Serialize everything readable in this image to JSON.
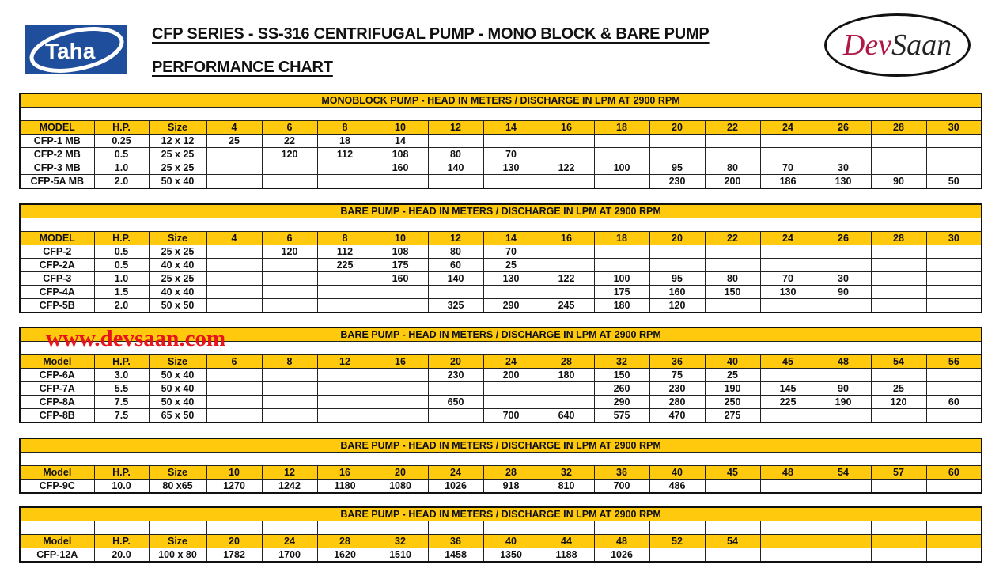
{
  "header": {
    "title_line1": "CFP SERIES - SS-316 CENTRIFUGAL PUMP - MONO BLOCK & BARE PUMP",
    "title_line2": "PERFORMANCE CHART",
    "left_logo_text": "Taha",
    "right_logo_text_1": "Dev",
    "right_logo_text_2": "Saan"
  },
  "watermark": "www.devsaan.com",
  "colors": {
    "header_yellow": "#ffc90e",
    "watermark_red": "#e8141b",
    "taha_blue": "#1f4f9c"
  },
  "tables": [
    {
      "title": "MONOBLOCK PUMP - HEAD IN METERS / DISCHARGE IN LPM AT 2900 RPM",
      "columns": [
        "MODEL",
        "H.P.",
        "Size",
        "4",
        "6",
        "8",
        "10",
        "12",
        "14",
        "16",
        "18",
        "20",
        "22",
        "24",
        "26",
        "28",
        "30"
      ],
      "rows": [
        [
          "CFP-1 MB",
          "0.25",
          "12 x 12",
          "25",
          "22",
          "18",
          "14",
          "",
          "",
          "",
          "",
          "",
          "",
          "",
          "",
          "",
          ""
        ],
        [
          "CFP-2 MB",
          "0.5",
          "25 x 25",
          "",
          "120",
          "112",
          "108",
          "80",
          "70",
          "",
          "",
          "",
          "",
          "",
          "",
          "",
          ""
        ],
        [
          "CFP-3 MB",
          "1.0",
          "25 x 25",
          "",
          "",
          "",
          "160",
          "140",
          "130",
          "122",
          "100",
          "95",
          "80",
          "70",
          "30",
          "",
          ""
        ],
        [
          "CFP-5A MB",
          "2.0",
          "50 x 40",
          "",
          "",
          "",
          "",
          "",
          "",
          "",
          "",
          "230",
          "200",
          "186",
          "130",
          "90",
          "50"
        ]
      ]
    },
    {
      "title": "BARE PUMP - HEAD IN METERS / DISCHARGE IN LPM AT 2900 RPM",
      "columns": [
        "MODEL",
        "H.P.",
        "Size",
        "4",
        "6",
        "8",
        "10",
        "12",
        "14",
        "16",
        "18",
        "20",
        "22",
        "24",
        "26",
        "28",
        "30"
      ],
      "rows": [
        [
          "CFP-2",
          "0.5",
          "25 x 25",
          "",
          "120",
          "112",
          "108",
          "80",
          "70",
          "",
          "",
          "",
          "",
          "",
          "",
          "",
          ""
        ],
        [
          "CFP-2A",
          "0.5",
          "40 x 40",
          "",
          "",
          "225",
          "175",
          "60",
          "25",
          "",
          "",
          "",
          "",
          "",
          "",
          "",
          ""
        ],
        [
          "CFP-3",
          "1.0",
          "25 x 25",
          "",
          "",
          "",
          "160",
          "140",
          "130",
          "122",
          "100",
          "95",
          "80",
          "70",
          "30",
          "",
          ""
        ],
        [
          "CFP-4A",
          "1.5",
          "40 x 40",
          "",
          "",
          "",
          "",
          "",
          "",
          "",
          "175",
          "160",
          "150",
          "130",
          "90",
          "",
          ""
        ],
        [
          "CFP-5B",
          "2.0",
          "50 x 50",
          "",
          "",
          "",
          "",
          "325",
          "290",
          "245",
          "180",
          "120",
          "",
          "",
          "",
          "",
          ""
        ]
      ]
    },
    {
      "title": "BARE PUMP - HEAD IN METERS / DISCHARGE IN LPM AT 2900 RPM",
      "columns": [
        "Model",
        "H.P.",
        "Size",
        "6",
        "8",
        "12",
        "16",
        "20",
        "24",
        "28",
        "32",
        "36",
        "40",
        "45",
        "48",
        "54",
        "56"
      ],
      "rows": [
        [
          "CFP-6A",
          "3.0",
          "50 x 40",
          "",
          "",
          "",
          "",
          "230",
          "200",
          "180",
          "150",
          "75",
          "25",
          "",
          "",
          "",
          ""
        ],
        [
          "CFP-7A",
          "5.5",
          "50 x 40",
          "",
          "",
          "",
          "",
          "",
          "",
          "",
          "260",
          "230",
          "190",
          "145",
          "90",
          "25",
          ""
        ],
        [
          "CFP-8A",
          "7.5",
          "50 x 40",
          "",
          "",
          "",
          "",
          "650",
          "",
          "",
          "290",
          "280",
          "250",
          "225",
          "190",
          "120",
          "60"
        ],
        [
          "CFP-8B",
          "7.5",
          "65 x 50",
          "",
          "",
          "",
          "",
          "",
          "700",
          "640",
          "575",
          "470",
          "275",
          "",
          "",
          "",
          ""
        ]
      ]
    },
    {
      "title": "BARE PUMP - HEAD IN METERS / DISCHARGE IN LPM AT 2900 RPM",
      "columns": [
        "Model",
        "H.P.",
        "Size",
        "10",
        "12",
        "16",
        "20",
        "24",
        "28",
        "32",
        "36",
        "40",
        "45",
        "48",
        "54",
        "57",
        "60"
      ],
      "rows": [
        [
          "CFP-9C",
          "10.0",
          "80 x65",
          "1270",
          "1242",
          "1180",
          "1080",
          "1026",
          "918",
          "810",
          "700",
          "486",
          "",
          "",
          "",
          "",
          ""
        ]
      ]
    },
    {
      "title": "BARE PUMP - HEAD IN METERS / DISCHARGE IN LPM AT 2900 RPM",
      "columns": [
        "Model",
        "H.P.",
        "Size",
        "20",
        "24",
        "28",
        "32",
        "36",
        "40",
        "44",
        "48",
        "52",
        "54",
        "",
        "",
        "",
        ""
      ],
      "rows": [
        [
          "CFP-12A",
          "20.0",
          "100 x 80",
          "1782",
          "1700",
          "1620",
          "1510",
          "1458",
          "1350",
          "1188",
          "1026",
          "",
          "",
          "",
          "",
          "",
          ""
        ]
      ]
    }
  ]
}
